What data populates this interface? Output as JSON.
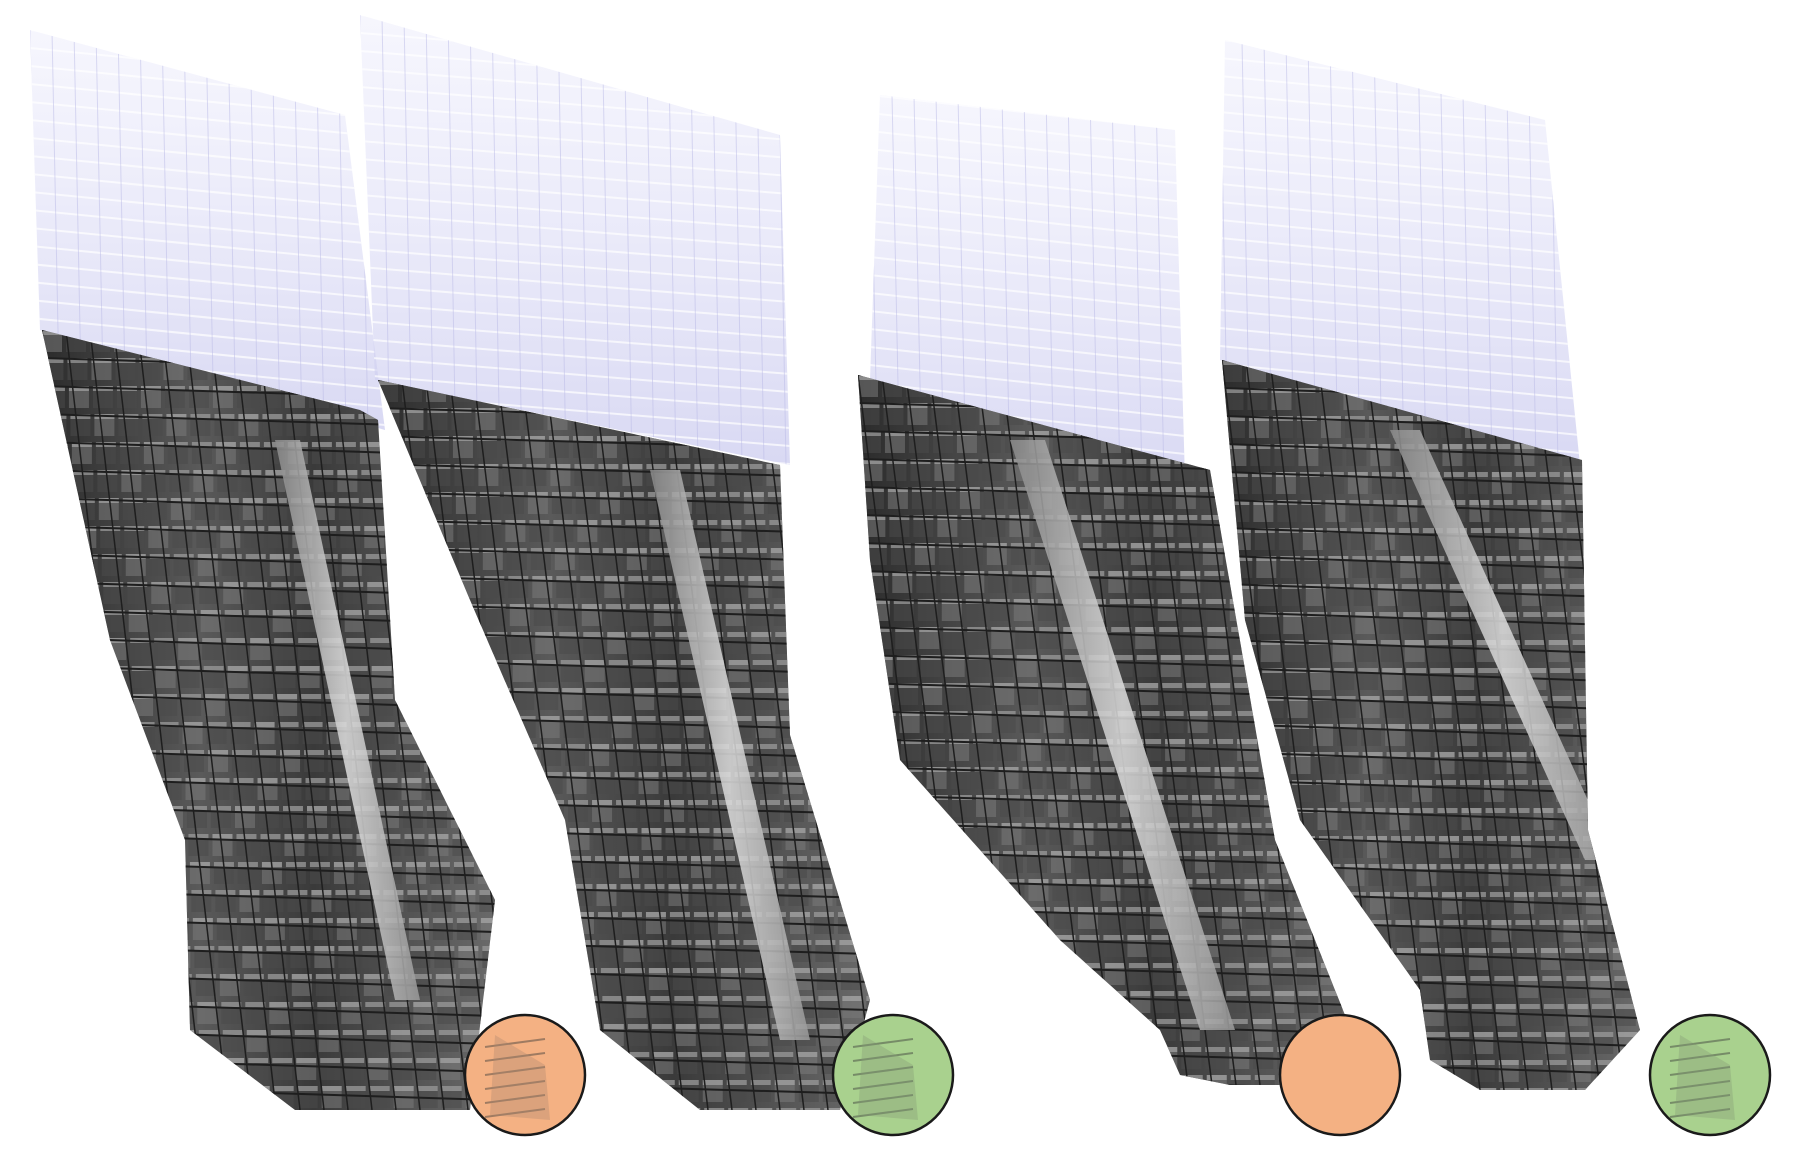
{
  "figure": {
    "background": "#ffffff",
    "ghost_color": "#c9c9ee",
    "mesh_dark": "#3a3a3a",
    "mesh_mid": "#6d6d6d",
    "mesh_light": "#c9c9c9",
    "grid_line": "#1e1e1e"
  },
  "panels": [
    {
      "id": "panel-1",
      "marker": {
        "status": "orange",
        "fill": "#f4b183",
        "stroke": "#1a1a1a",
        "shows_mesh_inside": true
      }
    },
    {
      "id": "panel-2",
      "marker": {
        "status": "green",
        "fill": "#a9d18e",
        "stroke": "#1a1a1a",
        "shows_mesh_inside": true
      }
    },
    {
      "id": "panel-3",
      "marker": {
        "status": "orange",
        "fill": "#f4b183",
        "stroke": "#1a1a1a",
        "shows_mesh_inside": false
      }
    },
    {
      "id": "panel-4",
      "marker": {
        "status": "green",
        "fill": "#a9d18e",
        "stroke": "#1a1a1a",
        "shows_mesh_inside": true
      }
    }
  ]
}
